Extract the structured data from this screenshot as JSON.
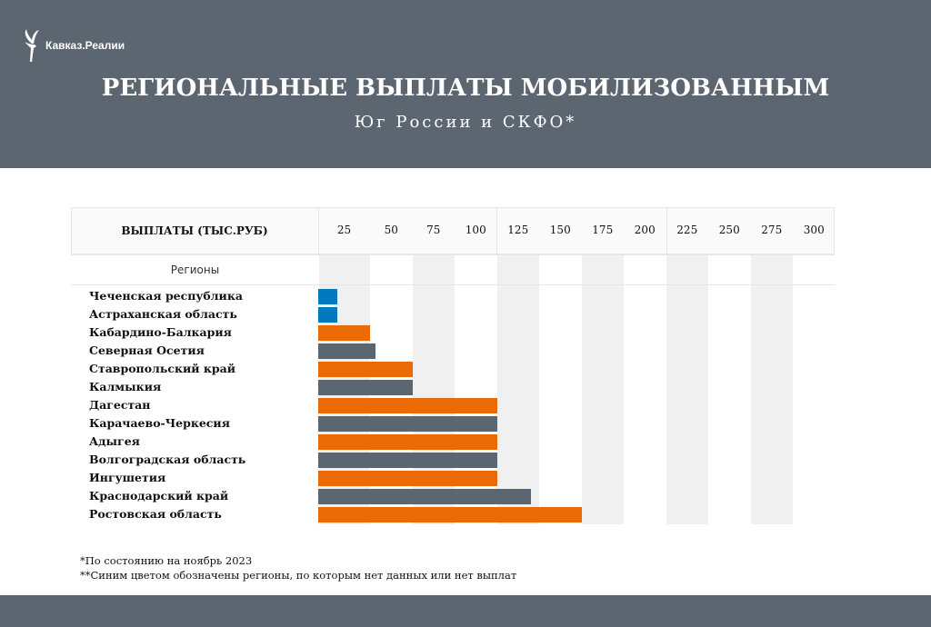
{
  "brand": "Кавказ.Реалии",
  "title": "РЕГИОНАЛЬНЫЕ ВЫПЛАТЫ МОБИЛИЗОВАННЫМ",
  "subtitle": "Юг России и СКФО*",
  "colors": {
    "header_bg": "#5b6670",
    "paid": "#e96a06",
    "paid_alt": "#5b6670",
    "no_data": "#0079bf"
  },
  "chart_data": {
    "type": "bar",
    "orientation": "horizontal",
    "xlabel": "ВЫПЛАТЫ (ТЫС.РУБ)",
    "ylabel": "Регионы",
    "xlim": [
      0,
      300
    ],
    "ticks": [
      "25",
      "50",
      "75",
      "100",
      "125",
      "150",
      "175",
      "200",
      "225",
      "250",
      "275",
      "300"
    ],
    "categories": [
      "Чеченская республика",
      "Астраханская область",
      "Кабардино-Балкария",
      "Северная Осетия",
      "Ставропольский край",
      "Калмыкия",
      "Дагестан",
      "Карачаево-Черкесия",
      "Адыгея",
      "Волгоградская область",
      "Ингушетия",
      "Краснодарский край",
      "Ростовская область"
    ],
    "values": [
      9,
      9,
      25,
      28,
      50,
      50,
      100,
      100,
      100,
      100,
      100,
      120,
      150
    ],
    "bar_colors": [
      "#0079bf",
      "#0079bf",
      "#e96a06",
      "#5b6670",
      "#e96a06",
      "#5b6670",
      "#e96a06",
      "#5b6670",
      "#e96a06",
      "#5b6670",
      "#e96a06",
      "#5b6670",
      "#e96a06"
    ],
    "grid": "alternating column bands"
  },
  "footnotes": [
    "*По состоянию на ноябрь 2023",
    "**Синим цветом обозначены регионы, по которым нет данных или нет выплат"
  ]
}
